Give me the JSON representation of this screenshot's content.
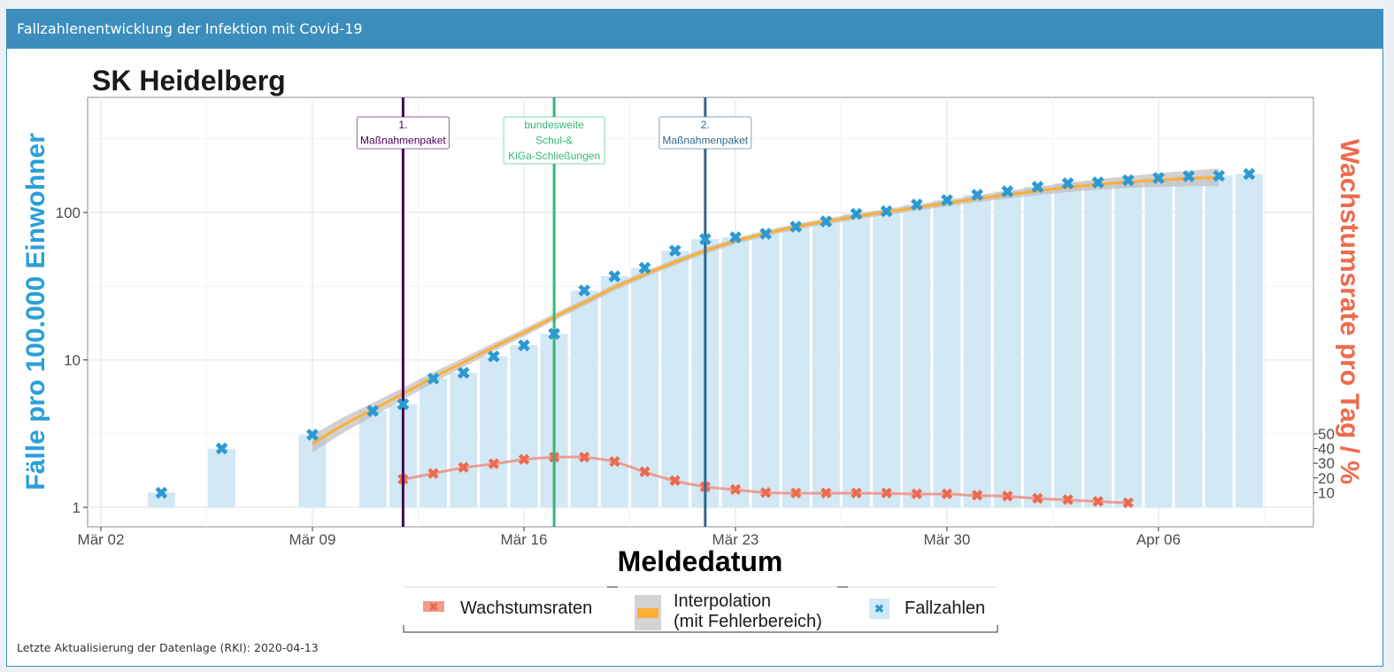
{
  "header": {
    "title": "Fallzahlenentwicklung der Infektion mit Covid-19"
  },
  "footer": {
    "text": "Letzte Aktualisierung der Datenlage (RKI): 2020-04-13"
  },
  "chart_data": {
    "type": "bar",
    "title": "SK Heidelberg",
    "xlabel": "Meldedatum",
    "ylabel": "Fälle pro 100.000 Einwohner",
    "y2label": "Wachstumsrate pro Tag / %",
    "yscale": "log",
    "ylim": [
      0.74,
      600
    ],
    "yticks": [
      1,
      10,
      100
    ],
    "y2ticks": [
      10,
      20,
      30,
      40,
      50
    ],
    "xticks": [
      {
        "date": "2020-03-02",
        "label": "Mär 02"
      },
      {
        "date": "2020-03-09",
        "label": "Mär 09"
      },
      {
        "date": "2020-03-16",
        "label": "Mär 16"
      },
      {
        "date": "2020-03-23",
        "label": "Mär 23"
      },
      {
        "date": "2020-03-30",
        "label": "Mär 30"
      },
      {
        "date": "2020-04-06",
        "label": "Apr 06"
      }
    ],
    "xlim": [
      "2020-03-02",
      "2020-04-10"
    ],
    "grid": true,
    "legend_position": "bottom",
    "colors": {
      "cases": "#2b9ad3",
      "bars": "#d2e8f5",
      "growth": "#ec6a50",
      "interpolation": "#ffae34",
      "band": "#bdbdbd"
    },
    "series": [
      {
        "name": "Fallzahlen",
        "type": "bar+marker",
        "x": [
          "2020-03-04",
          "2020-03-06",
          "2020-03-09",
          "2020-03-11",
          "2020-03-12",
          "2020-03-13",
          "2020-03-14",
          "2020-03-15",
          "2020-03-16",
          "2020-03-17",
          "2020-03-18",
          "2020-03-19",
          "2020-03-20",
          "2020-03-21",
          "2020-03-22",
          "2020-03-23",
          "2020-03-24",
          "2020-03-25",
          "2020-03-26",
          "2020-03-27",
          "2020-03-28",
          "2020-03-29",
          "2020-03-30",
          "2020-03-31",
          "2020-04-01",
          "2020-04-02",
          "2020-04-03",
          "2020-04-04",
          "2020-04-05",
          "2020-04-06",
          "2020-04-07",
          "2020-04-08",
          "2020-04-09"
        ],
        "values": [
          1.26,
          2.5,
          3.1,
          4.5,
          5.0,
          7.5,
          8.2,
          10.6,
          12.6,
          15.0,
          29.6,
          37,
          42,
          55,
          66,
          68,
          72,
          80,
          87,
          98,
          102,
          113,
          121,
          132,
          139,
          149,
          158,
          160,
          166,
          171,
          176,
          178,
          182
        ]
      },
      {
        "name": "Interpolation (mit Fehlerbereich)",
        "type": "line+band",
        "x": [
          "2020-03-09",
          "2020-03-10",
          "2020-03-11",
          "2020-03-12",
          "2020-03-13",
          "2020-03-14",
          "2020-03-15",
          "2020-03-16",
          "2020-03-17",
          "2020-03-18",
          "2020-03-19",
          "2020-03-20",
          "2020-03-21",
          "2020-03-22",
          "2020-03-23",
          "2020-03-24",
          "2020-03-25",
          "2020-03-26",
          "2020-03-27",
          "2020-03-28",
          "2020-03-29",
          "2020-03-30",
          "2020-03-31",
          "2020-04-01",
          "2020-04-02",
          "2020-04-03",
          "2020-04-04",
          "2020-04-05",
          "2020-04-06",
          "2020-04-07",
          "2020-04-08"
        ],
        "values": [
          2.7,
          3.6,
          4.6,
          5.9,
          7.6,
          9.6,
          12.2,
          15.3,
          19.5,
          24.5,
          31,
          38,
          46,
          55,
          64,
          72,
          80,
          87,
          94,
          101,
          108,
          116,
          124,
          132,
          140,
          148,
          155,
          161,
          166,
          170,
          173
        ]
      },
      {
        "name": "Wachstumsraten",
        "type": "line+marker",
        "axis": "right",
        "x": [
          "2020-03-12",
          "2020-03-13",
          "2020-03-14",
          "2020-03-15",
          "2020-03-16",
          "2020-03-17",
          "2020-03-18",
          "2020-03-19",
          "2020-03-20",
          "2020-03-21",
          "2020-03-22",
          "2020-03-23",
          "2020-03-24",
          "2020-03-25",
          "2020-03-26",
          "2020-03-27",
          "2020-03-28",
          "2020-03-29",
          "2020-03-30",
          "2020-03-31",
          "2020-04-01",
          "2020-04-02",
          "2020-04-03",
          "2020-04-04",
          "2020-04-05"
        ],
        "values": [
          19,
          23,
          27,
          29.5,
          32.5,
          34,
          34,
          31,
          24,
          18,
          14,
          12,
          10,
          9.6,
          9.6,
          9.6,
          9.5,
          9,
          9,
          8,
          7.5,
          6,
          5,
          4,
          3
        ]
      }
    ],
    "annotations": [
      {
        "date": "2020-03-12",
        "lines": [
          "1.",
          "Maßnahmenpaket"
        ],
        "color": "#440154"
      },
      {
        "date": "2020-03-17",
        "lines": [
          "bundesweite",
          "Schul-&",
          "KiGa-Schließungen"
        ],
        "color": "#35b779"
      },
      {
        "date": "2020-03-22",
        "lines": [
          "2.",
          "Maßnahmenpaket"
        ],
        "color": "#31688e"
      }
    ],
    "legend": [
      {
        "label": "Wachstumsraten"
      },
      {
        "label": "Interpolation",
        "label2": "(mit Fehlerbereich)"
      },
      {
        "label": "Fallzahlen"
      }
    ]
  }
}
